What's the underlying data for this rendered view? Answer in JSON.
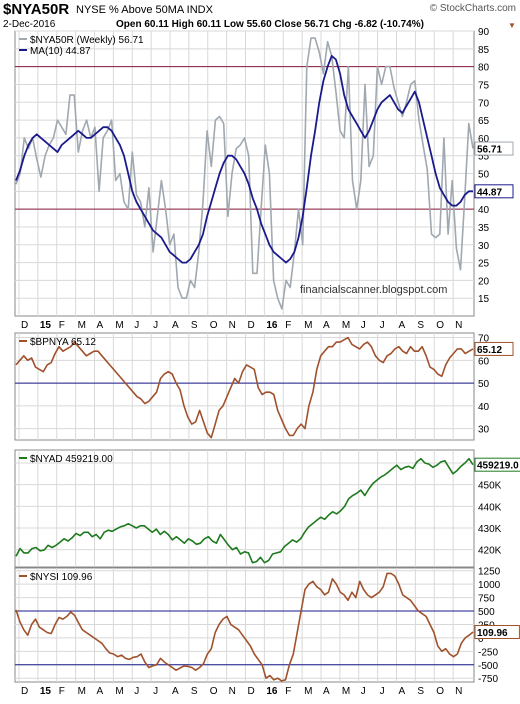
{
  "header": {
    "symbol": "$NYA50R",
    "name": "NYSE % Above 50MA INDX",
    "copyright": "© StockCharts.com",
    "date": "2-Dec-2016",
    "quote": "Open 60.11  High 60.11  Low 55.60  Close 56.71  Chg -6.82 (-10.74%)",
    "chg_marker": "▼"
  },
  "watermark": "financialscanner.blogspot.com",
  "x_axis_labels": [
    "D",
    "15",
    "F",
    "M",
    "A",
    "M",
    "J",
    "J",
    "A",
    "S",
    "O",
    "N",
    "D",
    "16",
    "F",
    "M",
    "A",
    "M",
    "J",
    "J",
    "A",
    "S",
    "O",
    "N"
  ],
  "colors": {
    "gray_line": "#a0a8b0",
    "ma_line": "#1a1a8c",
    "brown": "#a0522d",
    "green": "#1e7a1e",
    "ref_red": "#8b1a3a",
    "ref_blue": "#1a1a8c",
    "grid": "#d8d8d8"
  },
  "chart_data": [
    {
      "type": "line",
      "panel": "main",
      "ylim": [
        10,
        90
      ],
      "yticks": [
        15,
        20,
        25,
        30,
        35,
        40,
        45,
        50,
        55,
        60,
        65,
        70,
        75,
        80,
        85,
        90
      ],
      "ref_lines": [
        80,
        40
      ],
      "legend": [
        "$NYA50R (Weekly) 56.71",
        "MA(10) 44.87"
      ],
      "last_labels": [
        "56.71",
        "44.87"
      ],
      "series": [
        {
          "name": "$NYA50R (Weekly) 56.71",
          "values": [
            47,
            50,
            60,
            57,
            60,
            54,
            49,
            55,
            58,
            60,
            65,
            63,
            61,
            72,
            72,
            56,
            62,
            65,
            60,
            63,
            45,
            60,
            62,
            65,
            48,
            50,
            42,
            40,
            56,
            44,
            42,
            35,
            46,
            28,
            38,
            48,
            40,
            30,
            33,
            18,
            15,
            15,
            20,
            18,
            28,
            42,
            62,
            52,
            65,
            66,
            64,
            38,
            50,
            57,
            58,
            60,
            55,
            22,
            22,
            40,
            58,
            50,
            20,
            15,
            12,
            20,
            18,
            28,
            40,
            30,
            80,
            88,
            88,
            84,
            78,
            87,
            83,
            73,
            62,
            60,
            80,
            48,
            40,
            48,
            75,
            52,
            55,
            80,
            75,
            80,
            80,
            74,
            70,
            66,
            70,
            75,
            76,
            65,
            58,
            51,
            33,
            32,
            33,
            60,
            33,
            48,
            29,
            23,
            43,
            64,
            57
          ]
        },
        {
          "name": "MA(10) 44.87",
          "values": [
            48,
            51,
            55,
            58,
            60,
            61,
            60,
            59,
            58,
            57,
            56,
            58,
            59,
            60,
            61,
            62,
            61,
            60,
            60,
            61,
            62,
            63,
            63,
            62,
            60,
            58,
            55,
            50,
            45,
            42,
            40,
            38,
            36,
            34,
            33,
            32,
            30,
            28,
            27,
            26,
            25,
            25,
            26,
            28,
            30,
            33,
            38,
            42,
            46,
            50,
            53,
            55,
            55,
            54,
            52,
            50,
            47,
            43,
            40,
            36,
            33,
            30,
            28,
            27,
            26,
            25,
            26,
            28,
            32,
            38,
            46,
            55,
            62,
            70,
            76,
            80,
            83,
            82,
            78,
            72,
            68,
            66,
            64,
            62,
            60,
            62,
            65,
            68,
            70,
            71,
            72,
            70,
            68,
            67,
            69,
            71,
            73,
            70,
            65,
            60,
            55,
            50,
            46,
            44,
            42,
            41,
            41,
            42,
            44,
            45,
            45
          ]
        }
      ]
    },
    {
      "type": "line",
      "panel": "bpnya",
      "ylim": [
        25,
        72
      ],
      "yticks": [
        30,
        40,
        50,
        60,
        70
      ],
      "ref_lines": [
        50
      ],
      "legend": [
        "$BPNYA 65.12"
      ],
      "last_labels": [
        "65.12"
      ],
      "series": [
        {
          "name": "$BPNYA 65.12",
          "values": [
            58,
            60,
            62,
            60,
            61,
            57,
            56,
            55,
            58,
            59,
            63,
            66,
            64,
            65,
            66,
            68,
            66,
            64,
            62,
            63,
            64,
            64,
            62,
            60,
            58,
            56,
            54,
            52,
            50,
            48,
            46,
            44,
            43,
            41,
            42,
            44,
            46,
            52,
            54,
            55,
            54,
            50,
            47,
            40,
            35,
            32,
            33,
            38,
            33,
            28,
            26,
            32,
            38,
            40,
            44,
            48,
            52,
            50,
            55,
            58,
            57,
            56,
            48,
            45,
            46,
            46,
            45,
            38,
            34,
            30,
            27,
            27,
            30,
            32,
            30,
            40,
            46,
            56,
            62,
            64,
            66,
            66,
            68,
            68,
            69,
            70,
            67,
            66,
            65,
            67,
            68,
            66,
            62,
            60,
            59,
            62,
            63,
            65,
            66,
            64,
            63,
            66,
            64,
            64,
            66,
            62,
            57,
            56,
            54,
            53,
            58,
            61,
            63,
            65,
            65,
            63,
            64,
            65
          ]
        }
      ]
    },
    {
      "type": "line",
      "panel": "nyad",
      "ylim": [
        412000,
        466000
      ],
      "yticks": [
        420000,
        430000,
        440000,
        450000,
        460000
      ],
      "ytick_labels": [
        "420K",
        "430K",
        "440K",
        "450K",
        "460K"
      ],
      "legend": [
        "$NYAD 459219.00"
      ],
      "last_labels": [
        "459219.0"
      ],
      "series": [
        {
          "name": "$NYAD 459219.00",
          "values": [
            417000,
            420500,
            418500,
            418500,
            420500,
            421000,
            419500,
            419800,
            422000,
            421000,
            422000,
            423500,
            425000,
            424000,
            425500,
            427500,
            426500,
            428000,
            428000,
            426000,
            427000,
            425000,
            428000,
            429000,
            428500,
            429500,
            430500,
            431000,
            432000,
            431000,
            430000,
            431000,
            431000,
            429500,
            428000,
            429500,
            427000,
            428500,
            427000,
            424500,
            426000,
            424500,
            423000,
            425000,
            424000,
            422500,
            423000,
            425000,
            426000,
            424000,
            423000,
            427000,
            424500,
            422000,
            420000,
            421000,
            418000,
            419000,
            418500,
            414000,
            414500,
            416500,
            414000,
            415000,
            418000,
            418500,
            419000,
            421500,
            423000,
            424500,
            423500,
            425000,
            428000,
            430500,
            432000,
            433500,
            435000,
            434000,
            436000,
            437500,
            436500,
            438000,
            440000,
            443500,
            445000,
            446000,
            447500,
            445000,
            448000,
            450500,
            452000,
            453500,
            454500,
            456000,
            457500,
            459000,
            457000,
            458000,
            458500,
            457500,
            460500,
            462000,
            460000,
            459500,
            458000,
            459000,
            460500,
            461000,
            458000,
            455000,
            456500,
            458500,
            460000,
            462000,
            459219
          ]
        }
      ]
    },
    {
      "type": "line",
      "panel": "nysi",
      "ylim": [
        -820,
        1300
      ],
      "yticks": [
        -750,
        -500,
        -250,
        0,
        250,
        500,
        750,
        1000,
        1250
      ],
      "ref_lines": [
        500,
        -500
      ],
      "legend": [
        "$NYSI 109.96"
      ],
      "last_labels": [
        "109.96"
      ],
      "series": [
        {
          "name": "$NYSI 109.96",
          "values": [
            520,
            300,
            150,
            50,
            250,
            350,
            200,
            150,
            100,
            80,
            250,
            380,
            350,
            400,
            480,
            420,
            280,
            150,
            100,
            50,
            0,
            -50,
            -100,
            -200,
            -280,
            -300,
            -350,
            -320,
            -380,
            -400,
            -360,
            -350,
            -300,
            -450,
            -550,
            -520,
            -500,
            -380,
            -450,
            -500,
            -550,
            -600,
            -560,
            -520,
            -530,
            -550,
            -600,
            -550,
            -480,
            -300,
            -200,
            100,
            250,
            350,
            400,
            250,
            200,
            150,
            50,
            -50,
            -150,
            -300,
            -400,
            -500,
            -750,
            -700,
            -780,
            -750,
            -800,
            -780,
            -500,
            -300,
            100,
            500,
            900,
            1000,
            1050,
            950,
            900,
            800,
            850,
            1100,
            1000,
            850,
            800,
            700,
            850,
            750,
            1050,
            900,
            800,
            750,
            800,
            850,
            950,
            1200,
            1200,
            1150,
            1000,
            800,
            750,
            700,
            600,
            500,
            450,
            400,
            250,
            100,
            -150,
            -250,
            -200,
            -300,
            -350,
            -300,
            -100,
            0,
            50,
            109.96
          ]
        }
      ]
    }
  ]
}
